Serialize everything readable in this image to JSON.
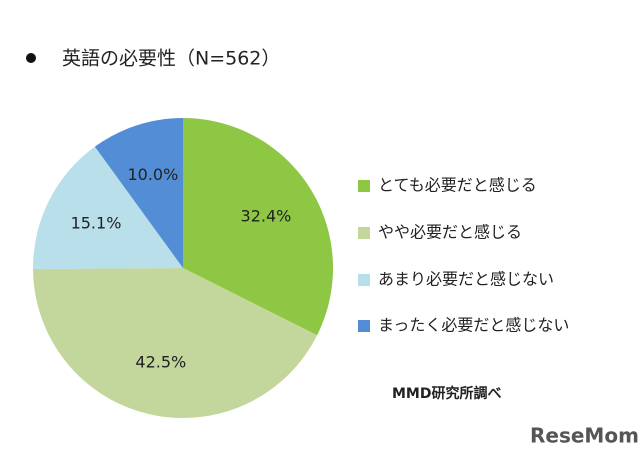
{
  "chart_data": {
    "type": "pie",
    "title": "英語の必要性（N=562）",
    "categories": [
      "とても必要だと感じる",
      "やや必要だと感じる",
      "あまり必要だと感じない",
      "まったく必要だと感じない"
    ],
    "values": [
      32.4,
      42.5,
      15.1,
      10.0
    ],
    "value_labels": [
      "32.4%",
      "42.5%",
      "15.1%",
      "10.0%"
    ],
    "colors": [
      "#8dc743",
      "#c3d69b",
      "#b8dfea",
      "#538dd5"
    ],
    "legend": "right",
    "source": "MMD研究所調べ",
    "watermark": "ReseMom"
  }
}
